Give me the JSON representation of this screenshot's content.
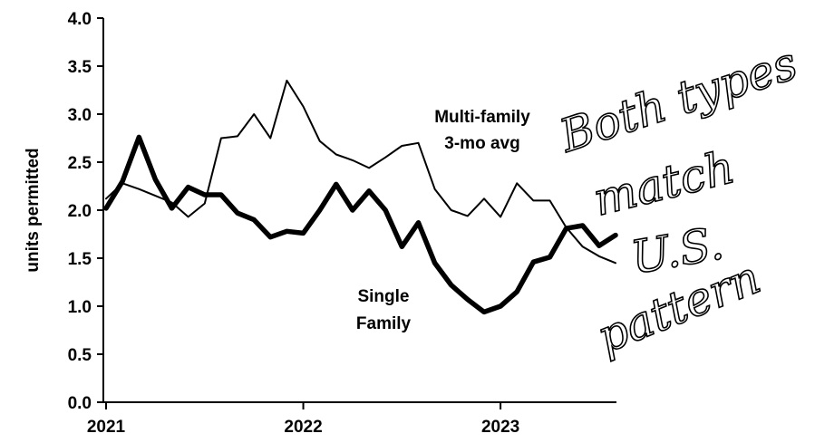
{
  "chart_data": {
    "type": "line",
    "title": "",
    "xlabel": "",
    "ylabel": "units permitted",
    "ylim": [
      0,
      4
    ],
    "yticks": [
      "0.0",
      "0.5",
      "1.0",
      "1.5",
      "2.0",
      "2.5",
      "3.0",
      "3.5",
      "4.0"
    ],
    "xticks": [
      "2021",
      "2022",
      "2023"
    ],
    "x": [
      "2021-01",
      "2021-02",
      "2021-03",
      "2021-04",
      "2021-05",
      "2021-06",
      "2021-07",
      "2021-08",
      "2021-09",
      "2021-10",
      "2021-11",
      "2021-12",
      "2022-01",
      "2022-02",
      "2022-03",
      "2022-04",
      "2022-05",
      "2022-06",
      "2022-07",
      "2022-08",
      "2022-09",
      "2022-10",
      "2022-11",
      "2022-12",
      "2023-01",
      "2023-02",
      "2023-03",
      "2023-04",
      "2023-05",
      "2023-06",
      "2023-07",
      "2023-08"
    ],
    "grid": false,
    "series": [
      {
        "name": "Multi-family 3-mo avg",
        "values": [
          2.12,
          2.28,
          2.22,
          2.15,
          2.08,
          1.93,
          2.07,
          2.75,
          2.77,
          3.0,
          2.75,
          3.35,
          3.08,
          2.72,
          2.58,
          2.52,
          2.44,
          2.55,
          2.67,
          2.7,
          2.22,
          2.0,
          1.94,
          2.12,
          1.93,
          2.28,
          2.1,
          2.1,
          1.82,
          1.62,
          1.52,
          1.45
        ],
        "color": "#000000"
      },
      {
        "name": "Single Family",
        "values": [
          2.02,
          2.3,
          2.76,
          2.32,
          2.02,
          2.24,
          2.16,
          2.16,
          1.97,
          1.9,
          1.72,
          1.78,
          1.76,
          2.0,
          2.27,
          2.0,
          2.2,
          2.0,
          1.62,
          1.87,
          1.45,
          1.22,
          1.07,
          0.94,
          1.0,
          1.15,
          1.46,
          1.51,
          1.81,
          1.84,
          1.63,
          1.74
        ],
        "color": "#000000"
      }
    ]
  },
  "labels": {
    "multi_line1": "Multi-family",
    "multi_line2": "3-mo avg",
    "single_line1": "Single",
    "single_line2": "Family"
  },
  "annotation": {
    "lines": [
      "Both types",
      "match",
      "U.S.",
      "pattern"
    ]
  }
}
